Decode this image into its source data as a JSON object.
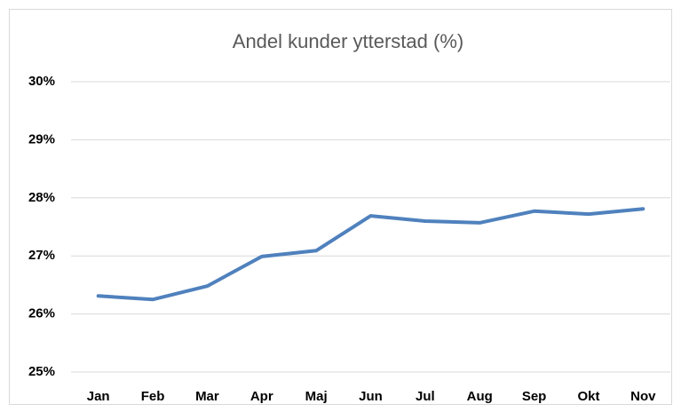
{
  "chart_data": {
    "type": "line",
    "title": "Andel kunder ytterstad (%)",
    "categories": [
      "Jan",
      "Feb",
      "Mar",
      "Apr",
      "Maj",
      "Jun",
      "Jul",
      "Aug",
      "Sep",
      "Okt",
      "Nov"
    ],
    "series": [
      {
        "name": "Andel kunder ytterstad",
        "color": "#4f81bd",
        "values": [
          26.31,
          26.25,
          26.48,
          26.99,
          27.09,
          27.69,
          27.6,
          27.57,
          27.77,
          27.72,
          27.81
        ]
      }
    ],
    "ylim": [
      25,
      30
    ],
    "yticks": [
      {
        "value": 25,
        "label": "25%"
      },
      {
        "value": 26,
        "label": "26%"
      },
      {
        "value": 27,
        "label": "27%"
      },
      {
        "value": 28,
        "label": "28%"
      },
      {
        "value": 29,
        "label": "29%"
      },
      {
        "value": 30,
        "label": "30%"
      }
    ],
    "grid": true
  }
}
